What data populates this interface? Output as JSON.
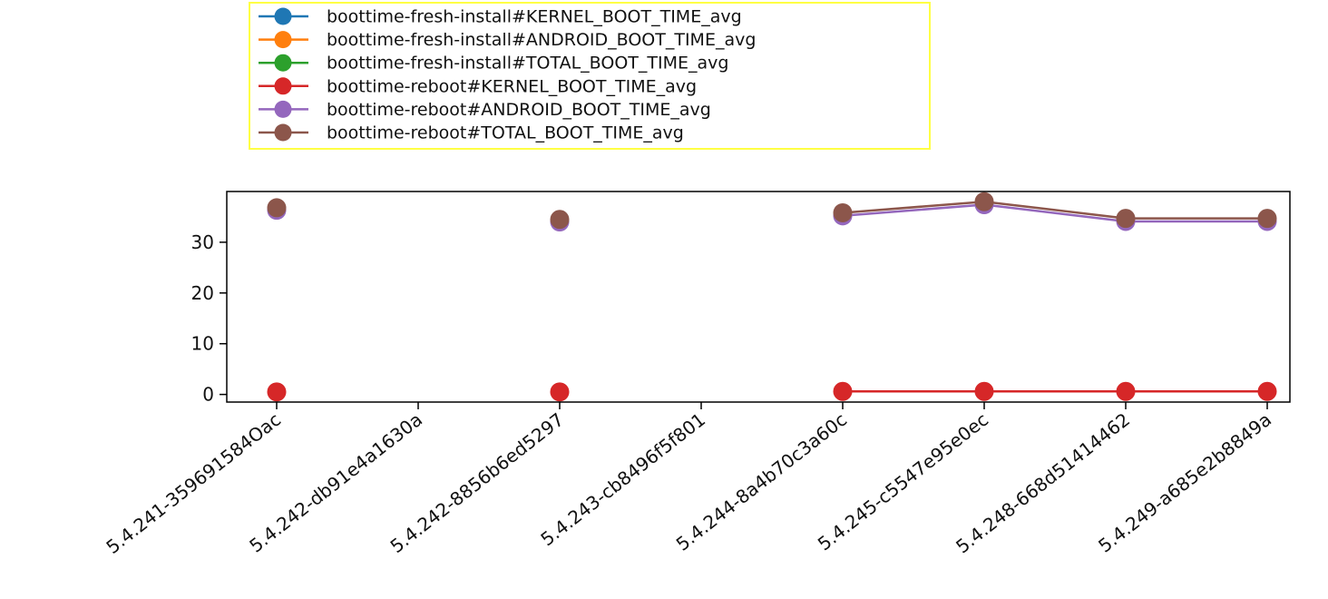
{
  "chart_data": {
    "type": "line",
    "categories": [
      "5.4.241-359691584Oac",
      "5.4.242-db91e4a1630a",
      "5.4.242-8856b6ed5297",
      "5.4.243-cb8496f5f801",
      "5.4.244-8a4b70c3a60c",
      "5.4.245-c5547e95e0ec",
      "5.4.248-668d51414462",
      "5.4.249-a685e2b8849a"
    ],
    "series": [
      {
        "name": "boottime-fresh-install#KERNEL_BOOT_TIME_avg",
        "color": "#1f77b4",
        "values": [
          null,
          null,
          null,
          null,
          null,
          null,
          null,
          null
        ]
      },
      {
        "name": "boottime-fresh-install#ANDROID_BOOT_TIME_avg",
        "color": "#ff7f0e",
        "values": [
          null,
          null,
          null,
          null,
          null,
          null,
          null,
          null
        ]
      },
      {
        "name": "boottime-fresh-install#TOTAL_BOOT_TIME_avg",
        "color": "#2ca02c",
        "values": [
          null,
          null,
          null,
          null,
          null,
          null,
          null,
          null
        ]
      },
      {
        "name": "boottime-reboot#KERNEL_BOOT_TIME_avg",
        "color": "#d62728",
        "values": [
          0.5,
          null,
          0.5,
          null,
          0.6,
          0.6,
          0.6,
          0.6
        ]
      },
      {
        "name": "boottime-reboot#ANDROID_BOOT_TIME_avg",
        "color": "#9467bd",
        "values": [
          36.3,
          null,
          34.0,
          null,
          35.2,
          37.4,
          34.1,
          34.1
        ]
      },
      {
        "name": "boottime-reboot#TOTAL_BOOT_TIME_avg",
        "color": "#8c564b",
        "values": [
          36.8,
          null,
          34.5,
          null,
          35.8,
          38.0,
          34.7,
          34.7
        ]
      }
    ],
    "y_ticks": [
      0,
      10,
      20,
      30
    ],
    "ylim": [
      -1.5,
      40
    ],
    "legend_position": "top-left-outside",
    "grid": false,
    "title": "",
    "xlabel": "",
    "ylabel": ""
  }
}
